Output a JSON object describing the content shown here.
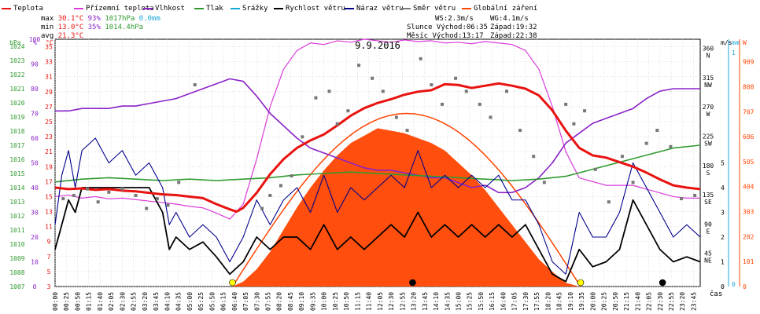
{
  "legend": [
    {
      "label": "Teplota",
      "color": "#e8120f"
    },
    {
      "label": "Přízemní teplota",
      "color": "#d93ad9"
    },
    {
      "label": "Vlhkost",
      "color": "#8a22c7"
    },
    {
      "label": "Tlak",
      "color": "#2f9b2f"
    },
    {
      "label": "Srážky",
      "color": "#1aa8d8"
    },
    {
      "label": "Rychlost větru",
      "color": "#000000"
    },
    {
      "label": "Náraz větru",
      "color": "#00008b"
    },
    {
      "label": "Směr větru",
      "color": "#777777"
    },
    {
      "label": "Globální záření",
      "color": "#ff4400"
    }
  ],
  "stats": {
    "max_label": "max",
    "max_temp": "30.1°C",
    "max_hum": "93%",
    "max_press": "1017hPa",
    "max_rain": "0.0mm",
    "min_label": "min",
    "min_temp": "13.0°C",
    "min_hum": "35%",
    "min_press": "1014.4hPa",
    "avg_label": "avg",
    "avg_temp": "21.3°C",
    "ws": "WS:2.3m/s",
    "wg": "WG:4.1m/s",
    "slunce": "Slunce Východ:06:35",
    "slunce_west": "Západ:19:32",
    "mesic": "Měsíc  Východ:13:17",
    "mesic_west": "Západ:22:38"
  },
  "colors": {
    "temp": "#e8120f",
    "ground": "#d93ad9",
    "hum": "#8a22c7",
    "press": "#2f9b2f",
    "rain": "#1aa8d8",
    "wind": "#000000",
    "gust": "#00008b",
    "dir": "#777777",
    "solar": "#ff4400"
  },
  "chart_data": {
    "type": "line",
    "title": "9.9.2016",
    "x_axis_label": "čas",
    "x_ticks": [
      "00:00",
      "00:25",
      "00:50",
      "01:15",
      "01:40",
      "02:05",
      "02:30",
      "02:55",
      "03:20",
      "03:45",
      "04:10",
      "04:35",
      "05:00",
      "05:25",
      "05:50",
      "06:15",
      "06:40",
      "07:05",
      "07:30",
      "07:55",
      "08:20",
      "08:45",
      "09:10",
      "09:35",
      "10:00",
      "10:25",
      "10:50",
      "11:15",
      "11:40",
      "12:05",
      "12:30",
      "12:55",
      "13:20",
      "13:45",
      "14:10",
      "14:35",
      "15:00",
      "15:25",
      "15:50",
      "16:15",
      "16:40",
      "17:05",
      "17:30",
      "17:55",
      "18:20",
      "18:45",
      "19:10",
      "19:35",
      "20:00",
      "20:25",
      "20:50",
      "21:15",
      "21:40",
      "22:05",
      "22:30",
      "22:55",
      "23:20",
      "23:45"
    ],
    "axes": {
      "hPa": {
        "label": "hPa",
        "ticks": [
          "1007",
          "1008",
          "1009",
          "1010",
          "1011",
          "1012",
          "1013",
          "1014",
          "1015",
          "1016",
          "1017",
          "1018",
          "1019",
          "1020",
          "1021",
          "1022",
          "1023",
          "1024"
        ],
        "range": [
          1007,
          1024.5
        ],
        "color": "#2f9b2f"
      },
      "humidity": {
        "label": "%",
        "ticks": [
          "0",
          "10",
          "20",
          "30",
          "40",
          "50",
          "60",
          "70",
          "80",
          "90",
          "100"
        ],
        "range": [
          0,
          100
        ],
        "color": "#8a22c7"
      },
      "temperature": {
        "label": "°C",
        "ticks": [
          "3",
          "5",
          "7",
          "9",
          "11",
          "13",
          "15",
          "17",
          "19",
          "21",
          "23",
          "25",
          "27",
          "29",
          "31",
          "33",
          "35"
        ],
        "range": [
          3,
          36
        ],
        "color": "#e8120f"
      },
      "wind_speed": {
        "label": "m/s",
        "ticks": [
          "0",
          "1",
          "2",
          "3",
          "4",
          "5"
        ],
        "range": [
          0,
          10
        ],
        "color": "#000000"
      },
      "rain": {
        "label": "mm",
        "ticks": [
          "0",
          "1"
        ],
        "range": [
          0,
          1
        ],
        "color": "#1aa8d8"
      },
      "solar": {
        "label": "W",
        "ticks": [
          "0",
          "101",
          "202",
          "303",
          "404",
          "505",
          "606",
          "707",
          "808",
          "909"
        ],
        "range": [
          0,
          1000
        ],
        "color": "#ff4400"
      },
      "direction": {
        "labels": [
          "N",
          "NW",
          "W",
          "SW",
          "S",
          "SE",
          "E",
          "NE"
        ],
        "degrees": [
          "360",
          "315",
          "270",
          "225",
          "180",
          "135",
          "90",
          "45"
        ]
      }
    },
    "series": [
      {
        "name": "Teplota",
        "key": "temp",
        "unit": "°C",
        "x": [
          0,
          0.5,
          1,
          1.5,
          2,
          2.5,
          3,
          3.5,
          4,
          4.5,
          5,
          5.5,
          6,
          6.5,
          6.75,
          7,
          7.5,
          8,
          8.5,
          9,
          9.5,
          10,
          10.5,
          11,
          11.5,
          12,
          12.5,
          13,
          13.5,
          14,
          14.5,
          15,
          15.5,
          16,
          16.5,
          17,
          17.5,
          18,
          18.5,
          19,
          19.5,
          20,
          20.5,
          21,
          21.5,
          22,
          22.5,
          23,
          23.5,
          24
        ],
        "y": [
          16.2,
          16.0,
          16.1,
          15.9,
          16.0,
          15.8,
          15.7,
          15.5,
          15.3,
          15.2,
          15.0,
          14.8,
          14.0,
          13.3,
          13.0,
          13.5,
          15.5,
          18.0,
          20.0,
          21.5,
          22.5,
          23.3,
          24.5,
          25.8,
          26.8,
          27.5,
          28.0,
          28.6,
          29.0,
          29.2,
          30.0,
          29.9,
          29.5,
          29.8,
          30.1,
          29.8,
          29.4,
          28.5,
          26.5,
          23.8,
          21.5,
          20.5,
          20.2,
          19.6,
          19.0,
          18.2,
          17.3,
          16.5,
          16.2,
          16.0
        ]
      },
      {
        "name": "Přízemní teplota",
        "key": "ground",
        "unit": "°C",
        "x": [
          0,
          0.5,
          1,
          1.5,
          2,
          2.5,
          3,
          3.5,
          4,
          4.5,
          5,
          5.5,
          6,
          6.5,
          7,
          7.5,
          8,
          8.5,
          9,
          9.5,
          10,
          10.5,
          11,
          11.5,
          12,
          12.5,
          13,
          13.5,
          14,
          14.5,
          15,
          15.5,
          16,
          16.5,
          17,
          17.5,
          18,
          18.5,
          19,
          19.5,
          20,
          20.5,
          21,
          21.5,
          22,
          22.5,
          23,
          23.5,
          24
        ],
        "y": [
          15.0,
          15.2,
          14.8,
          15.0,
          14.7,
          14.8,
          14.6,
          14.4,
          14.2,
          14.0,
          13.7,
          13.5,
          12.8,
          12.0,
          14.0,
          20.0,
          27.0,
          32.0,
          34.5,
          35.5,
          35.3,
          35.8,
          35.6,
          36.0,
          35.8,
          35.6,
          35.9,
          35.7,
          35.8,
          35.5,
          35.6,
          35.4,
          35.7,
          35.5,
          35.3,
          34.5,
          32.0,
          27.0,
          21.0,
          17.5,
          17.0,
          16.5,
          16.5,
          16.5,
          16.0,
          15.5,
          15.0,
          14.8,
          14.8
        ]
      },
      {
        "name": "Vlhkost",
        "key": "hum",
        "unit": "%",
        "x": [
          0,
          0.5,
          1,
          1.5,
          2,
          2.5,
          3,
          3.5,
          4,
          4.5,
          5,
          5.5,
          6,
          6.5,
          7,
          7.5,
          8,
          8.5,
          9,
          9.5,
          10,
          10.5,
          11,
          11.5,
          12,
          12.5,
          13,
          13.5,
          14,
          14.5,
          15,
          15.5,
          16,
          16.5,
          17,
          17.5,
          18,
          18.5,
          19,
          19.5,
          20,
          20.5,
          21,
          21.5,
          22,
          22.5,
          23,
          23.5,
          24
        ],
        "y": [
          71,
          71,
          72,
          72,
          72,
          73,
          73,
          74,
          75,
          76,
          78,
          80,
          82,
          84,
          83,
          77,
          70,
          65,
          60,
          56,
          54,
          52,
          50,
          48,
          47,
          47,
          46,
          45,
          44,
          44,
          42,
          40,
          41,
          38,
          38,
          40,
          44,
          50,
          58,
          62,
          66,
          68,
          70,
          72,
          76,
          79,
          80,
          80,
          80
        ]
      },
      {
        "name": "Tlak",
        "key": "press",
        "unit": "hPa",
        "x": [
          0,
          1,
          2,
          3,
          4,
          5,
          6,
          7,
          8,
          9,
          10,
          11,
          12,
          13,
          14,
          15,
          16,
          17,
          18,
          19,
          20,
          21,
          22,
          23,
          24
        ],
        "y": [
          1014.4,
          1014.6,
          1014.7,
          1014.6,
          1014.5,
          1014.6,
          1014.5,
          1014.6,
          1014.7,
          1014.9,
          1015.0,
          1015.1,
          1015.0,
          1014.9,
          1014.8,
          1014.7,
          1014.6,
          1014.5,
          1014.6,
          1014.8,
          1015.3,
          1015.8,
          1016.3,
          1016.8,
          1017.0
        ]
      },
      {
        "name": "Globální záření",
        "key": "solar",
        "unit": "W",
        "x": [
          6.6,
          7,
          7.5,
          8,
          8.5,
          9,
          9.5,
          10,
          10.5,
          11,
          11.5,
          12,
          12.5,
          13,
          13.5,
          14,
          14.5,
          15,
          15.5,
          16,
          16.5,
          17,
          17.5,
          18,
          18.5,
          19,
          19.5
        ],
        "y": [
          0,
          20,
          70,
          140,
          230,
          320,
          400,
          470,
          530,
          580,
          610,
          640,
          630,
          620,
          600,
          580,
          550,
          500,
          450,
          390,
          320,
          250,
          180,
          110,
          60,
          15,
          0
        ]
      },
      {
        "name": "Rychlost větru",
        "key": "wind",
        "unit": "m/s",
        "x": [
          0,
          0.25,
          0.5,
          0.75,
          1,
          1.5,
          2,
          2.5,
          3,
          3.5,
          4,
          4.25,
          4.5,
          5,
          5.5,
          6,
          6.5,
          7,
          7.5,
          8,
          8.5,
          9,
          9.5,
          10,
          10.5,
          11,
          11.5,
          12,
          12.5,
          13,
          13.5,
          14,
          14.5,
          15,
          15.5,
          16,
          16.5,
          17,
          17.5,
          18,
          18.5,
          19,
          19.5,
          20,
          20.5,
          21,
          21.5,
          22,
          22.5,
          23,
          23.5,
          24
        ],
        "y": [
          1.5,
          2.5,
          3.5,
          3.0,
          4.0,
          4.0,
          4.0,
          4.0,
          4.0,
          4.0,
          3.0,
          1.5,
          2.0,
          1.5,
          1.8,
          1.2,
          0.5,
          1.0,
          2.0,
          1.5,
          2.0,
          2.0,
          1.5,
          2.5,
          1.5,
          2.0,
          1.5,
          2.0,
          2.5,
          2.0,
          3.0,
          2.0,
          2.5,
          2.0,
          2.5,
          2.0,
          2.5,
          2.0,
          2.5,
          1.5,
          0.5,
          0.2,
          1.5,
          0.8,
          1.0,
          1.5,
          3.5,
          2.5,
          1.5,
          1.0,
          1.2,
          1.0
        ]
      },
      {
        "name": "Náraz větru",
        "key": "gust",
        "unit": "m/s",
        "x": [
          0,
          0.25,
          0.5,
          0.75,
          1,
          1.5,
          2,
          2.5,
          3,
          3.5,
          4,
          4.25,
          4.5,
          5,
          5.5,
          6,
          6.5,
          7,
          7.5,
          8,
          8.5,
          9,
          9.5,
          10,
          10.5,
          11,
          11.5,
          12,
          12.5,
          13,
          13.5,
          14,
          14.5,
          15,
          15.5,
          16,
          16.5,
          17,
          17.5,
          18,
          18.5,
          19,
          19.5,
          20,
          20.5,
          21,
          21.5,
          22,
          22.5,
          23,
          23.5,
          24
        ],
        "y": [
          2.5,
          4.5,
          5.5,
          4.0,
          5.5,
          6.0,
          5.0,
          5.5,
          4.5,
          5.0,
          4.0,
          2.5,
          3.0,
          2.0,
          2.5,
          2.0,
          1.0,
          2.0,
          3.5,
          2.5,
          3.5,
          4.0,
          3.0,
          4.5,
          3.0,
          4.0,
          3.5,
          4.0,
          4.5,
          4.0,
          5.5,
          4.0,
          4.5,
          4.0,
          4.5,
          4.0,
          4.5,
          3.5,
          3.5,
          2.5,
          1.0,
          0.5,
          3.0,
          2.0,
          2.0,
          3.0,
          5.0,
          4.0,
          3.0,
          2.0,
          2.5,
          2.0
        ]
      },
      {
        "name": "Směr větru",
        "key": "dir",
        "unit": "°",
        "x": [
          0.3,
          0.7,
          1.2,
          1.6,
          2.0,
          2.5,
          3.0,
          3.4,
          3.8,
          4.2,
          4.6,
          5.2,
          7.7,
          8.0,
          8.4,
          8.8,
          9.2,
          9.7,
          10.2,
          10.5,
          10.9,
          11.3,
          11.8,
          12.2,
          12.7,
          13.1,
          13.6,
          14.0,
          14.4,
          14.9,
          15.3,
          15.8,
          16.2,
          16.8,
          17.3,
          17.8,
          18.2,
          19.0,
          19.3,
          19.7,
          20.1,
          20.6,
          21.1,
          21.5,
          22.0,
          22.4,
          22.9,
          23.3,
          23.8
        ],
        "y": [
          135,
          140,
          150,
          130,
          145,
          150,
          140,
          120,
          135,
          125,
          160,
          310,
          120,
          140,
          155,
          170,
          230,
          290,
          300,
          250,
          270,
          340,
          320,
          300,
          260,
          240,
          350,
          310,
          280,
          320,
          300,
          280,
          260,
          300,
          240,
          200,
          160,
          280,
          250,
          270,
          180,
          130,
          200,
          160,
          220,
          240,
          215,
          135,
          140
        ]
      }
    ],
    "markers": [
      {
        "name": "sunrise",
        "x": 6.6,
        "color": "#ffff00"
      },
      {
        "name": "moonrise",
        "x": 13.3,
        "color": "#000000"
      },
      {
        "name": "sunset",
        "x": 19.55,
        "color": "#ffff00"
      },
      {
        "name": "moonset",
        "x": 22.6,
        "color": "#000000"
      }
    ]
  }
}
